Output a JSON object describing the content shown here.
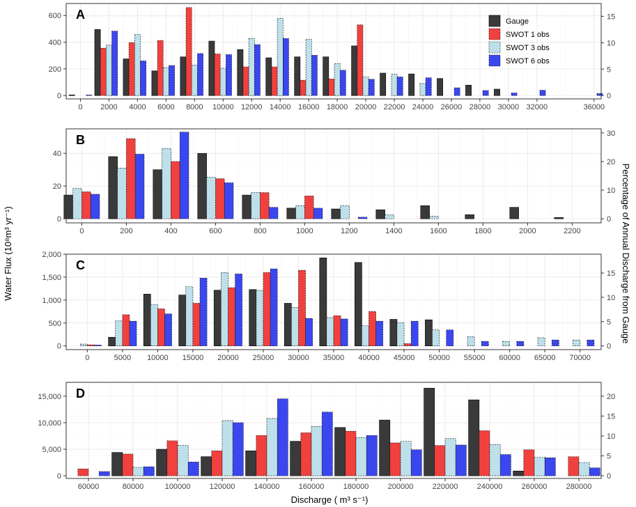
{
  "colors": {
    "Gauge": "#3a3a3a",
    "SWOT 1 obs": "#f0413f",
    "SWOT 3 obs": "#bde0ea",
    "SWOT 6 obs": "#3b47ee",
    "grid": "#ebebeb",
    "panel_border": "#333333"
  },
  "axis_titles": {
    "y_left": "Water Flux (10⁸m³ yr⁻¹)",
    "y_right": "Percentage of Annual Discharge from Gauge",
    "x": "Discharge ( m³ s⁻¹)"
  },
  "legend": {
    "entries": [
      "Gauge",
      "SWOT 1 obs",
      "SWOT 3 obs",
      "SWOT 6 obs"
    ],
    "placement": "top-right of panel A"
  },
  "chart_data": [
    {
      "panel": "A",
      "type": "bar",
      "series_names": [
        "Gauge",
        "SWOT 1 obs",
        "SWOT 3 obs",
        "SWOT 6 obs"
      ],
      "xlim": [
        -1000,
        36500
      ],
      "xticks": [
        0,
        2000,
        4000,
        6000,
        8000,
        10000,
        12000,
        14000,
        16000,
        18000,
        20000,
        22000,
        24000,
        26000,
        28000,
        30000,
        32000,
        36000
      ],
      "xtick_labels": [
        "0",
        "2000",
        "4000",
        "6000",
        "8000",
        "10000",
        "12000",
        "14000",
        "16000",
        "18000",
        "20000",
        "22000",
        "24000",
        "26000",
        "28000",
        "30000",
        "32000",
        "36000"
      ],
      "ylim": [
        -25,
        690
      ],
      "yticks": [
        0,
        200,
        400,
        600
      ],
      "ytick_labels": [
        "0",
        "200",
        "400",
        "600"
      ],
      "y2ticks": [
        0,
        5,
        10,
        15
      ],
      "y2tick_labels": [
        "0",
        "5",
        "10",
        "15"
      ],
      "y2_factor": 39.6,
      "groups": [
        {
          "x": 0,
          "values": [
            5,
            null,
            null,
            5
          ]
        },
        {
          "x": 1800,
          "values": [
            495,
            355,
            378,
            483
          ]
        },
        {
          "x": 3800,
          "values": [
            275,
            397,
            457,
            260
          ]
        },
        {
          "x": 5800,
          "values": [
            185,
            413,
            210,
            225
          ]
        },
        {
          "x": 7800,
          "values": [
            290,
            660,
            228,
            315
          ]
        },
        {
          "x": 9800,
          "values": [
            408,
            312,
            205,
            307
          ]
        },
        {
          "x": 11800,
          "values": [
            345,
            215,
            428,
            382
          ]
        },
        {
          "x": 13800,
          "values": [
            283,
            215,
            578,
            428
          ]
        },
        {
          "x": 15800,
          "values": [
            290,
            115,
            420,
            302
          ]
        },
        {
          "x": 17800,
          "values": [
            290,
            125,
            240,
            190
          ]
        },
        {
          "x": 19800,
          "values": [
            372,
            530,
            140,
            122
          ]
        },
        {
          "x": 21800,
          "values": [
            168,
            null,
            160,
            140
          ]
        },
        {
          "x": 23800,
          "values": [
            162,
            null,
            90,
            133
          ]
        },
        {
          "x": 25800,
          "values": [
            128,
            null,
            null,
            58
          ]
        },
        {
          "x": 27800,
          "values": [
            78,
            null,
            null,
            38
          ]
        },
        {
          "x": 29800,
          "values": [
            48,
            null,
            null,
            20
          ]
        },
        {
          "x": 31800,
          "values": [
            null,
            null,
            null,
            40
          ]
        },
        {
          "x": 35800,
          "values": [
            null,
            null,
            null,
            15
          ]
        }
      ]
    },
    {
      "panel": "B",
      "type": "bar",
      "series_names": [
        "Gauge",
        "SWOT 3 obs",
        "SWOT 1 obs",
        "SWOT 6 obs"
      ],
      "xlim": [
        -70,
        2330
      ],
      "xticks": [
        0,
        200,
        400,
        600,
        800,
        1000,
        1200,
        1400,
        1600,
        1800,
        2000,
        2200
      ],
      "xtick_labels": [
        "0",
        "200",
        "400",
        "600",
        "800",
        "1000",
        "1200",
        "1400",
        "1600",
        "1800",
        "2000",
        "2200"
      ],
      "ylim": [
        -2.5,
        55
      ],
      "yticks": [
        0,
        20,
        40
      ],
      "ytick_labels": [
        "0",
        "20",
        "40"
      ],
      "y2ticks": [
        0,
        10,
        20,
        30
      ],
      "y2tick_labels": [
        "0",
        "10",
        "20",
        "30"
      ],
      "y2_factor": 1.75,
      "groups": [
        {
          "x": 0,
          "values": [
            14.5,
            18.5,
            16.5,
            15
          ]
        },
        {
          "x": 200,
          "values": [
            38,
            31,
            49,
            39.5
          ]
        },
        {
          "x": 400,
          "values": [
            30,
            43,
            35,
            53
          ]
        },
        {
          "x": 600,
          "values": [
            40,
            25.5,
            24.5,
            22
          ]
        },
        {
          "x": 800,
          "values": [
            14.5,
            16,
            16,
            7
          ]
        },
        {
          "x": 1000,
          "values": [
            6.5,
            8,
            14,
            6.5
          ]
        },
        {
          "x": 1200,
          "values": [
            6,
            8,
            null,
            1
          ]
        },
        {
          "x": 1400,
          "values": [
            5.5,
            2.5,
            null,
            null
          ]
        },
        {
          "x": 1600,
          "values": [
            8,
            1.5,
            null,
            null
          ]
        },
        {
          "x": 1800,
          "values": [
            2.5,
            null,
            null,
            null
          ]
        },
        {
          "x": 2000,
          "values": [
            7,
            null,
            null,
            null
          ]
        },
        {
          "x": 2200,
          "values": [
            0.8,
            null,
            null,
            null
          ]
        }
      ]
    },
    {
      "panel": "C",
      "type": "bar",
      "series_names": [
        "Gauge",
        "SWOT 3 obs",
        "SWOT 1 obs",
        "SWOT 6 obs"
      ],
      "xlim": [
        -3000,
        73000
      ],
      "xticks": [
        0,
        5000,
        10000,
        15000,
        20000,
        25000,
        30000,
        35000,
        40000,
        45000,
        50000,
        55000,
        60000,
        65000,
        70000
      ],
      "xtick_labels": [
        "0",
        "5000",
        "10000",
        "15000",
        "20000",
        "25000",
        "30000",
        "35000",
        "40000",
        "45000",
        "50000",
        "55000",
        "60000",
        "65000",
        "70000"
      ],
      "ylim": [
        -80,
        2000
      ],
      "yticks": [
        0,
        500,
        1000,
        1500,
        2000
      ],
      "ytick_labels": [
        "0",
        "500",
        "1,000",
        "1,500",
        "2,000"
      ],
      "y2ticks": [
        0,
        5,
        10,
        15
      ],
      "y2tick_labels": [
        "0",
        "5",
        "10",
        "15"
      ],
      "y2_factor": 106,
      "groups": [
        {
          "x": 0,
          "values": [
            null,
            40,
            25,
            20
          ]
        },
        {
          "x": 5000,
          "values": [
            190,
            545,
            680,
            540
          ]
        },
        {
          "x": 10000,
          "values": [
            1130,
            905,
            810,
            700
          ]
        },
        {
          "x": 15000,
          "values": [
            1110,
            1290,
            930,
            1480
          ]
        },
        {
          "x": 20000,
          "values": [
            1215,
            1600,
            1270,
            1570
          ]
        },
        {
          "x": 25000,
          "values": [
            1230,
            1210,
            1600,
            1680
          ]
        },
        {
          "x": 30000,
          "values": [
            930,
            840,
            1650,
            600
          ]
        },
        {
          "x": 35000,
          "values": [
            1920,
            620,
            660,
            590
          ]
        },
        {
          "x": 40000,
          "values": [
            1820,
            440,
            750,
            540
          ]
        },
        {
          "x": 45000,
          "values": [
            580,
            510,
            50,
            540
          ]
        },
        {
          "x": 50000,
          "values": [
            570,
            350,
            null,
            350
          ]
        },
        {
          "x": 55000,
          "values": [
            null,
            200,
            null,
            100
          ]
        },
        {
          "x": 60000,
          "values": [
            null,
            100,
            null,
            100
          ]
        },
        {
          "x": 65000,
          "values": [
            null,
            180,
            null,
            130
          ]
        },
        {
          "x": 70000,
          "values": [
            null,
            130,
            null,
            130
          ]
        }
      ]
    },
    {
      "panel": "D",
      "type": "bar",
      "series_names": [
        "Gauge",
        "SWOT 1 obs",
        "SWOT 3 obs",
        "SWOT 6 obs"
      ],
      "xlim": [
        50000,
        290000
      ],
      "xticks": [
        60000,
        80000,
        100000,
        120000,
        140000,
        160000,
        180000,
        200000,
        220000,
        240000,
        260000,
        280000
      ],
      "xtick_labels": [
        "60000",
        "80000",
        "100000",
        "120000",
        "140000",
        "160000",
        "180000",
        "200000",
        "220000",
        "240000",
        "260000",
        "280000"
      ],
      "ylim": [
        -500,
        17600
      ],
      "yticks": [
        0,
        5000,
        10000,
        15000
      ],
      "ytick_labels": [
        "0",
        "5,000",
        "10,000",
        "15,000"
      ],
      "y2ticks": [
        0,
        5,
        10,
        15,
        20
      ],
      "y2tick_labels": [
        "0",
        "5",
        "10",
        "15",
        "20"
      ],
      "y2_factor": 750,
      "groups": [
        {
          "x": 60000,
          "values": [
            null,
            1300,
            null,
            800
          ]
        },
        {
          "x": 80000,
          "values": [
            4400,
            4100,
            1600,
            1700
          ]
        },
        {
          "x": 100000,
          "values": [
            5000,
            6600,
            5700,
            2600
          ]
        },
        {
          "x": 120000,
          "values": [
            3600,
            4700,
            10400,
            10000
          ]
        },
        {
          "x": 140000,
          "values": [
            4700,
            7600,
            10800,
            14500
          ]
        },
        {
          "x": 160000,
          "values": [
            6500,
            8100,
            9300,
            12000
          ]
        },
        {
          "x": 180000,
          "values": [
            9100,
            8400,
            7200,
            7600
          ]
        },
        {
          "x": 200000,
          "values": [
            10500,
            6200,
            6500,
            4900
          ]
        },
        {
          "x": 220000,
          "values": [
            16500,
            5700,
            7000,
            5800
          ]
        },
        {
          "x": 240000,
          "values": [
            14300,
            8500,
            5900,
            4000
          ]
        },
        {
          "x": 260000,
          "values": [
            900,
            4900,
            3500,
            3400
          ]
        },
        {
          "x": 280000,
          "values": [
            null,
            3600,
            2500,
            1500
          ]
        }
      ]
    }
  ]
}
